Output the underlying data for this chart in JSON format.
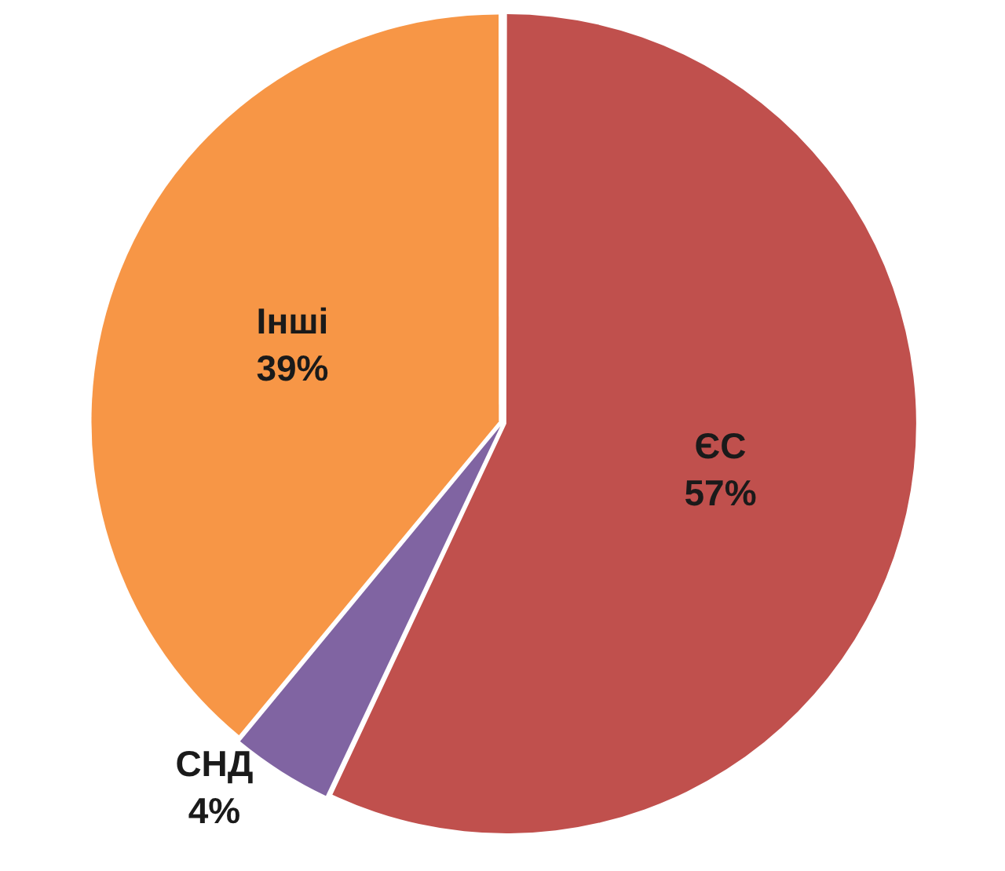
{
  "chart_data": {
    "type": "pie",
    "categories": [
      "ЄС",
      "СНД",
      "Інші"
    ],
    "values": [
      57,
      4,
      39
    ],
    "colors": [
      "#c0504d",
      "#8064a2",
      "#f79646"
    ],
    "value_labels": [
      "57%",
      "4%",
      "39%"
    ],
    "legend": false
  }
}
